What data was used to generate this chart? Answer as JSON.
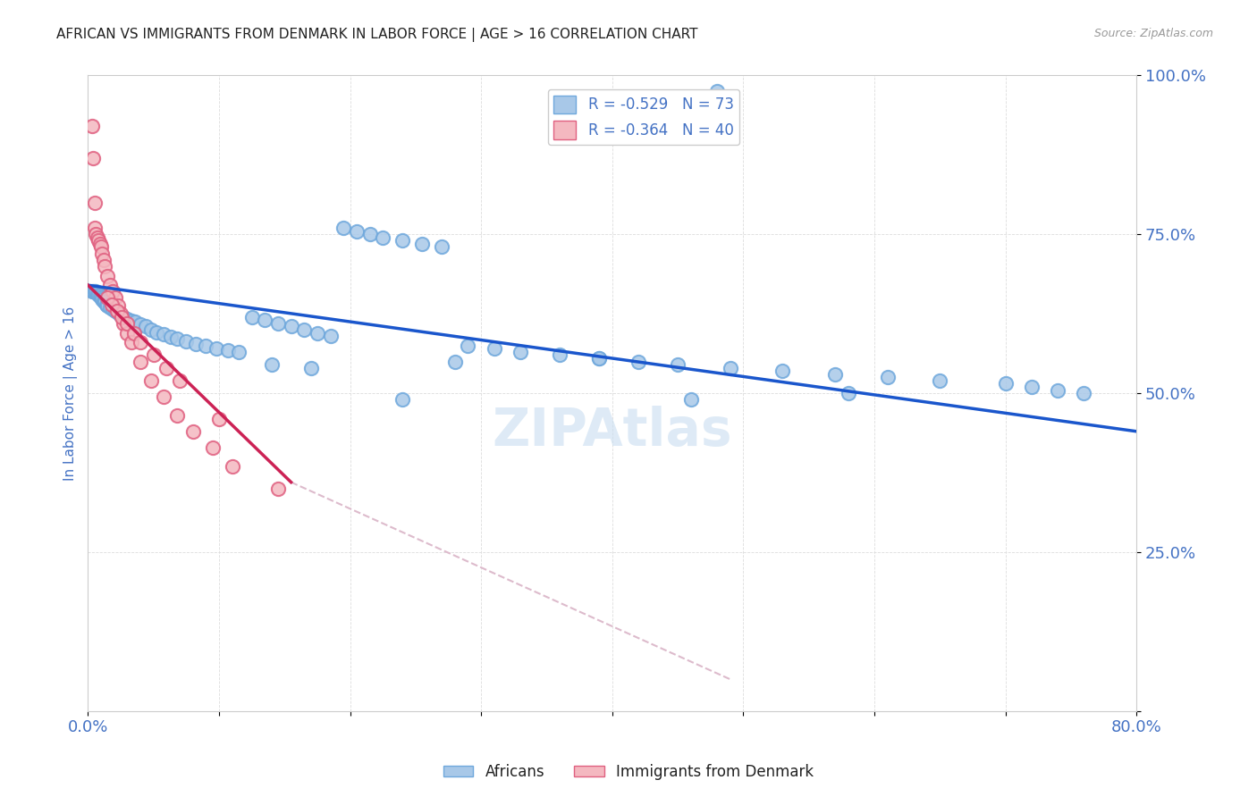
{
  "title": "AFRICAN VS IMMIGRANTS FROM DENMARK IN LABOR FORCE | AGE > 16 CORRELATION CHART",
  "source": "Source: ZipAtlas.com",
  "ylabel": "In Labor Force | Age > 16",
  "xlim": [
    0.0,
    0.8
  ],
  "ylim": [
    0.0,
    1.0
  ],
  "xticks": [
    0.0,
    0.1,
    0.2,
    0.3,
    0.4,
    0.5,
    0.6,
    0.7,
    0.8
  ],
  "yticks": [
    0.0,
    0.25,
    0.5,
    0.75,
    1.0
  ],
  "xticklabels": [
    "0.0%",
    "",
    "",
    "",
    "",
    "",
    "",
    "",
    "80.0%"
  ],
  "yticklabels": [
    "",
    "25.0%",
    "50.0%",
    "75.0%",
    "100.0%"
  ],
  "blue_color": "#a8c8e8",
  "pink_color": "#f4b8c0",
  "blue_edge_color": "#6fa8dc",
  "pink_edge_color": "#e06080",
  "blue_line_color": "#1a56cc",
  "pink_line_color": "#cc2255",
  "dashed_line_color": "#ddbbcc",
  "watermark_color": "#c8ddf0",
  "legend_blue_label": "R = -0.529   N = 73",
  "legend_pink_label": "R = -0.364   N = 40",
  "bottom_legend_blue": "Africans",
  "bottom_legend_pink": "Immigrants from Denmark",
  "blue_scatter_x": [
    0.003,
    0.48,
    0.004,
    0.005,
    0.006,
    0.007,
    0.008,
    0.009,
    0.01,
    0.011,
    0.012,
    0.013,
    0.014,
    0.015,
    0.017,
    0.019,
    0.021,
    0.023,
    0.025,
    0.027,
    0.03,
    0.033,
    0.036,
    0.04,
    0.044,
    0.048,
    0.052,
    0.058,
    0.063,
    0.068,
    0.075,
    0.082,
    0.09,
    0.098,
    0.107,
    0.115,
    0.125,
    0.135,
    0.145,
    0.155,
    0.165,
    0.175,
    0.185,
    0.195,
    0.205,
    0.215,
    0.225,
    0.24,
    0.255,
    0.27,
    0.29,
    0.31,
    0.33,
    0.36,
    0.39,
    0.42,
    0.45,
    0.49,
    0.53,
    0.57,
    0.61,
    0.65,
    0.7,
    0.72,
    0.74,
    0.76,
    0.24,
    0.17,
    0.14,
    0.28,
    0.39,
    0.46,
    0.58
  ],
  "blue_scatter_y": [
    0.66,
    0.975,
    0.66,
    0.66,
    0.66,
    0.658,
    0.655,
    0.653,
    0.65,
    0.648,
    0.645,
    0.643,
    0.64,
    0.638,
    0.635,
    0.632,
    0.629,
    0.626,
    0.622,
    0.62,
    0.617,
    0.614,
    0.612,
    0.608,
    0.605,
    0.6,
    0.596,
    0.593,
    0.589,
    0.586,
    0.581,
    0.578,
    0.574,
    0.571,
    0.568,
    0.565,
    0.62,
    0.615,
    0.61,
    0.605,
    0.6,
    0.595,
    0.59,
    0.76,
    0.755,
    0.75,
    0.745,
    0.74,
    0.735,
    0.73,
    0.575,
    0.57,
    0.565,
    0.56,
    0.555,
    0.55,
    0.545,
    0.54,
    0.535,
    0.53,
    0.525,
    0.52,
    0.515,
    0.51,
    0.505,
    0.5,
    0.49,
    0.54,
    0.545,
    0.55,
    0.555,
    0.49,
    0.5
  ],
  "pink_scatter_x": [
    0.003,
    0.004,
    0.005,
    0.005,
    0.006,
    0.007,
    0.008,
    0.009,
    0.01,
    0.011,
    0.012,
    0.013,
    0.015,
    0.017,
    0.019,
    0.021,
    0.023,
    0.025,
    0.027,
    0.03,
    0.033,
    0.04,
    0.048,
    0.058,
    0.068,
    0.08,
    0.095,
    0.11,
    0.015,
    0.018,
    0.022,
    0.026,
    0.03,
    0.035,
    0.04,
    0.05,
    0.06,
    0.07,
    0.1,
    0.145
  ],
  "pink_scatter_y": [
    0.92,
    0.87,
    0.8,
    0.76,
    0.75,
    0.745,
    0.74,
    0.735,
    0.73,
    0.72,
    0.71,
    0.7,
    0.685,
    0.67,
    0.66,
    0.65,
    0.638,
    0.625,
    0.61,
    0.595,
    0.58,
    0.55,
    0.52,
    0.495,
    0.465,
    0.44,
    0.415,
    0.385,
    0.65,
    0.64,
    0.63,
    0.62,
    0.61,
    0.595,
    0.58,
    0.56,
    0.54,
    0.52,
    0.46,
    0.35
  ],
  "blue_line_x": [
    0.0,
    0.8
  ],
  "blue_line_y": [
    0.67,
    0.44
  ],
  "pink_line_x": [
    0.0,
    0.155
  ],
  "pink_line_y": [
    0.67,
    0.36
  ],
  "dashed_line_x": [
    0.155,
    0.49
  ],
  "dashed_line_y": [
    0.36,
    0.05
  ],
  "bg_color": "#ffffff",
  "grid_color": "#dddddd",
  "title_fontsize": 11,
  "tick_label_color": "#4472c4"
}
